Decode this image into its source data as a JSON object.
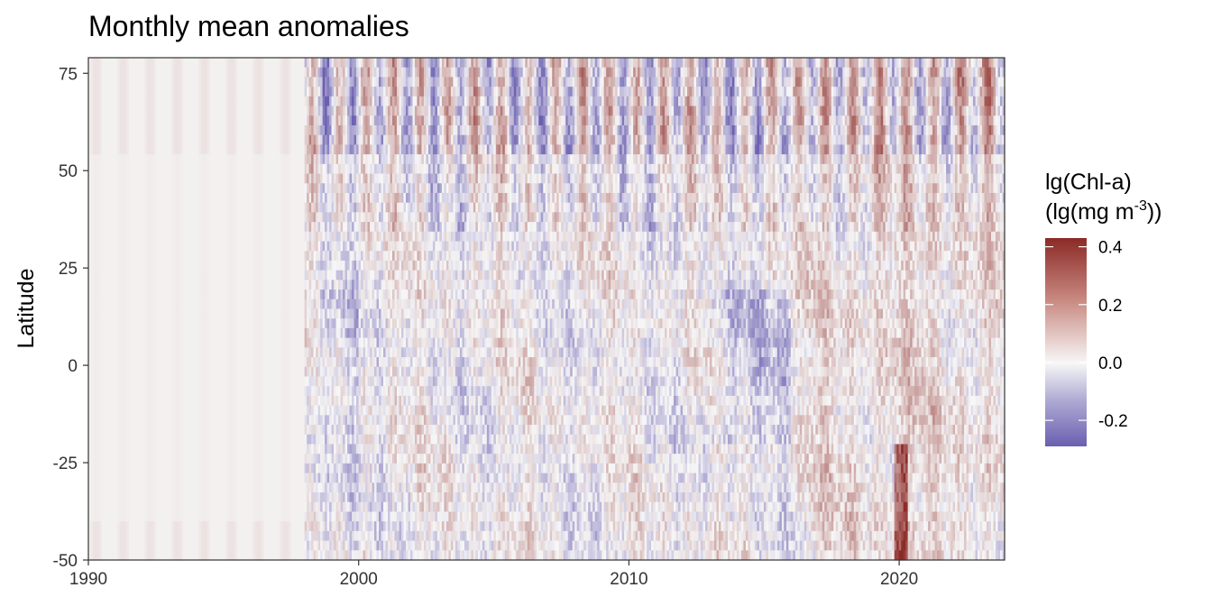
{
  "chart_data": {
    "type": "heatmap",
    "title": "Monthly mean anomalies",
    "xlabel": "",
    "ylabel": "Latitude",
    "x_ticks": [
      "1990",
      "2000",
      "2010",
      "2020"
    ],
    "x_tick_values": [
      1990,
      2000,
      2010,
      2020
    ],
    "xlim": [
      1990,
      2023.9
    ],
    "y_ticks": [
      "75",
      "50",
      "25",
      "0",
      "-25",
      "-50"
    ],
    "y_tick_values": [
      75,
      50,
      25,
      0,
      -25,
      -50
    ],
    "ylim": [
      -50,
      79
    ],
    "grid": false,
    "legend": {
      "title_line1": "lg(Chl-a)",
      "title_line2_pre": "(lg(mg m",
      "title_line2_sup": "-3",
      "title_line2_post": "))",
      "position": "right",
      "labels": [
        "0.4",
        "0.2",
        "0.0",
        "-0.2"
      ],
      "label_values": [
        0.4,
        0.2,
        0.0,
        -0.2
      ],
      "range": [
        -0.29,
        0.43
      ]
    },
    "colors": {
      "high": "#8b2a26",
      "mid_high": "#c98a82",
      "mid": "#f7f7f7",
      "mid_low": "#aeaad3",
      "low": "#6a5fb0"
    }
  }
}
